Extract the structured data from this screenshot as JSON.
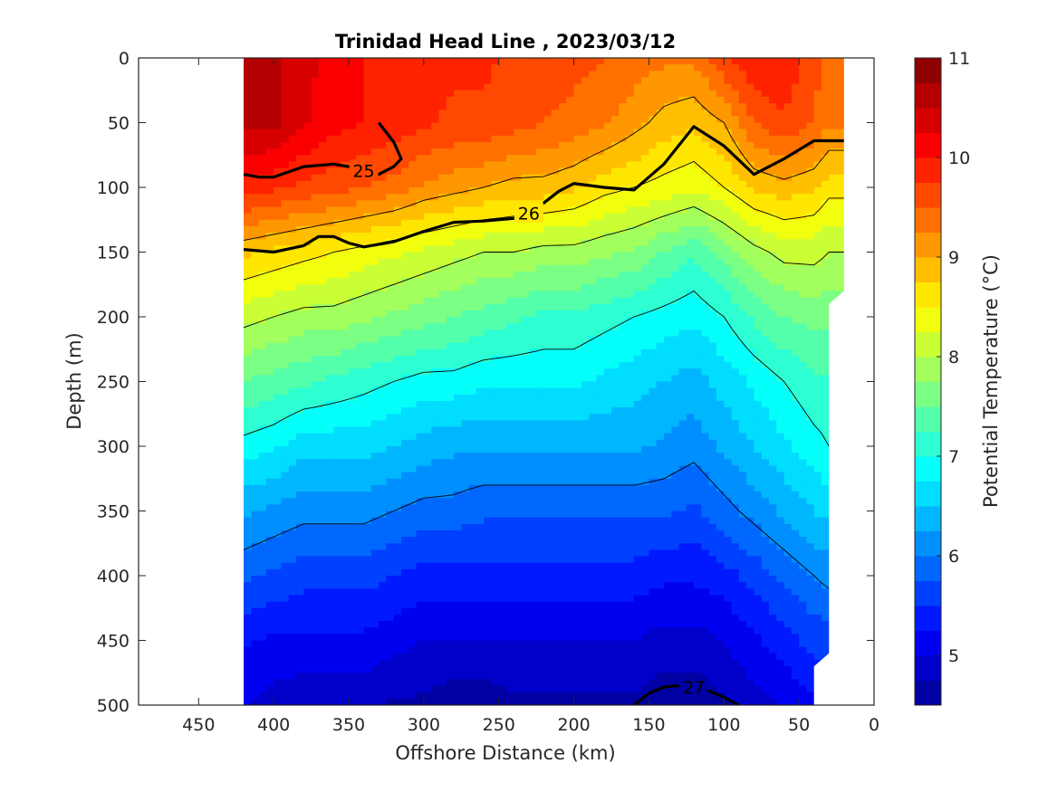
{
  "chart_data": {
    "type": "contour",
    "title": "Trinidad Head Line , 2023/03/12",
    "xlabel": "Offshore Distance (km)",
    "ylabel": "Depth (m)",
    "xlim": [
      490,
      0
    ],
    "ylim": [
      0,
      500
    ],
    "x_reversed": true,
    "y_reversed": true,
    "x_ticks": [
      450,
      400,
      350,
      300,
      250,
      200,
      150,
      100,
      50,
      0
    ],
    "y_ticks": [
      0,
      50,
      100,
      150,
      200,
      250,
      300,
      350,
      400,
      450,
      500
    ],
    "colorbar": {
      "label": "Potential Temperature (°C)",
      "range": [
        4.5,
        11
      ],
      "ticks": [
        5,
        6,
        7,
        8,
        9,
        10,
        11
      ],
      "levels": [
        4.5,
        4.75,
        5,
        5.25,
        5.5,
        5.75,
        6,
        6.25,
        6.5,
        6.75,
        7,
        7.25,
        7.5,
        7.75,
        8,
        8.25,
        8.5,
        8.75,
        9,
        9.25,
        9.5,
        9.75,
        10,
        10.25,
        10.5,
        10.75,
        11
      ],
      "colormap": "jet"
    },
    "data_extent_km": [
      420,
      20
    ],
    "temperature_field": {
      "x_km": [
        420,
        400,
        380,
        360,
        340,
        320,
        300,
        280,
        260,
        240,
        220,
        200,
        180,
        160,
        140,
        120,
        100,
        80,
        60,
        40,
        30
      ],
      "depth_m": [
        0,
        50,
        100,
        150,
        200,
        250,
        300,
        350,
        400,
        450,
        500
      ],
      "temp_c": [
        [
          10.6,
          10.6,
          10.3,
          10.2,
          10.0,
          9.9,
          9.8,
          9.8,
          9.8,
          9.7,
          9.7,
          9.6,
          9.5,
          9.4,
          9.3,
          9.3,
          9.7,
          10.0,
          10.0,
          9.6,
          9.4
        ],
        [
          10.6,
          10.6,
          10.3,
          10.1,
          10.0,
          9.9,
          9.8,
          9.7,
          9.7,
          9.6,
          9.5,
          9.4,
          9.3,
          9.1,
          8.9,
          8.8,
          9.0,
          9.5,
          9.7,
          9.5,
          9.3
        ],
        [
          9.9,
          9.8,
          9.7,
          9.6,
          9.5,
          9.4,
          9.2,
          9.1,
          9.0,
          8.9,
          8.9,
          8.8,
          8.6,
          8.5,
          8.4,
          8.3,
          8.5,
          8.8,
          8.9,
          8.8,
          8.6
        ],
        [
          8.8,
          8.7,
          8.6,
          8.5,
          8.4,
          8.3,
          8.2,
          8.1,
          8.0,
          8.0,
          7.9,
          7.9,
          7.8,
          7.7,
          7.5,
          7.3,
          7.6,
          7.9,
          8.1,
          8.1,
          8.0
        ],
        [
          8.1,
          8.0,
          7.9,
          7.9,
          7.8,
          7.7,
          7.6,
          7.5,
          7.4,
          7.3,
          7.2,
          7.2,
          7.1,
          7.0,
          6.9,
          6.8,
          7.0,
          7.3,
          7.5,
          7.6,
          7.6
        ],
        [
          7.5,
          7.4,
          7.3,
          7.2,
          7.1,
          7.0,
          6.9,
          6.9,
          6.8,
          6.8,
          6.8,
          6.8,
          6.7,
          6.6,
          6.5,
          6.4,
          6.6,
          6.8,
          7.0,
          7.2,
          7.2
        ],
        [
          6.9,
          6.8,
          6.6,
          6.6,
          6.6,
          6.5,
          6.4,
          6.3,
          6.3,
          6.3,
          6.3,
          6.3,
          6.3,
          6.3,
          6.2,
          6.1,
          6.3,
          6.5,
          6.7,
          6.9,
          7.0
        ],
        [
          6.3,
          6.2,
          6.1,
          6.1,
          6.1,
          6.0,
          5.9,
          5.9,
          5.8,
          5.8,
          5.8,
          5.8,
          5.8,
          5.8,
          5.8,
          5.7,
          5.9,
          6.1,
          6.3,
          6.5,
          6.6
        ],
        [
          5.8,
          5.7,
          5.6,
          5.6,
          5.6,
          5.5,
          5.4,
          5.4,
          5.4,
          5.4,
          5.4,
          5.4,
          5.4,
          5.4,
          5.3,
          5.3,
          5.4,
          5.6,
          5.8,
          6.0,
          6.1
        ],
        [
          5.3,
          5.2,
          5.2,
          5.2,
          5.2,
          5.1,
          5.0,
          5.0,
          5.0,
          5.0,
          5.0,
          5.0,
          5.0,
          5.0,
          4.9,
          4.9,
          5.0,
          5.2,
          5.4,
          5.6,
          5.6
        ],
        [
          5.0,
          4.9,
          4.8,
          4.8,
          4.8,
          4.7,
          4.7,
          4.6,
          4.6,
          4.7,
          4.7,
          4.7,
          4.7,
          4.7,
          4.6,
          4.6,
          4.7,
          4.9,
          5.0,
          5.2,
          5.3
        ]
      ]
    },
    "density_contours": [
      {
        "label": "25",
        "x_km": [
          420,
          410,
          400,
          380,
          360,
          350,
          340,
          330,
          320,
          315,
          320,
          330
        ],
        "depth_m": [
          90,
          92,
          92,
          84,
          82,
          84,
          87,
          90,
          84,
          78,
          65,
          50
        ]
      },
      {
        "label": "26",
        "x_km": [
          420,
          400,
          380,
          370,
          360,
          350,
          340,
          320,
          300,
          280,
          260,
          240,
          230,
          220,
          210,
          200,
          180,
          160,
          140,
          120,
          100,
          80,
          60,
          40,
          20
        ],
        "depth_m": [
          148,
          150,
          145,
          138,
          138,
          143,
          146,
          142,
          134,
          127,
          126,
          124,
          120,
          112,
          103,
          97,
          100,
          102,
          82,
          53,
          68,
          90,
          78,
          64,
          64
        ]
      },
      {
        "label": "27",
        "x_km": [
          160,
          150,
          140,
          130,
          120,
          110,
          100,
          90
        ],
        "depth_m": [
          500,
          491,
          486,
          485,
          486,
          489,
          494,
          500
        ]
      }
    ]
  }
}
